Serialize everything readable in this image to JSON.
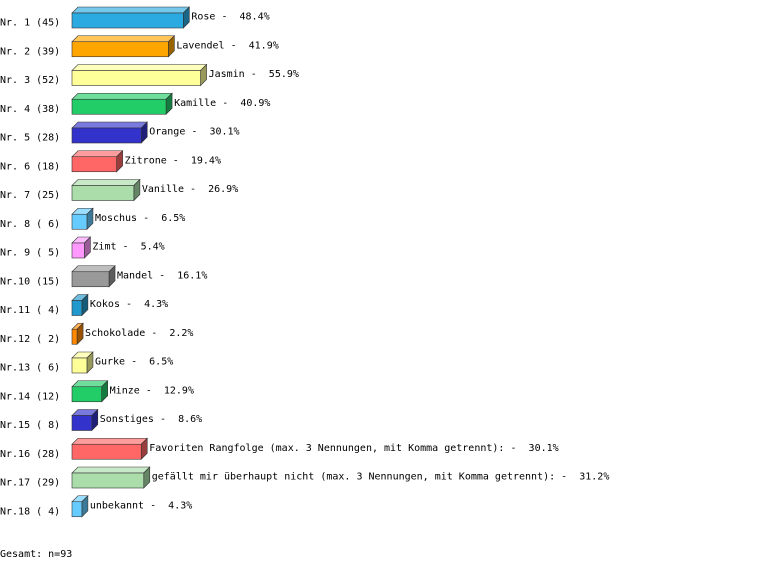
{
  "chart_data": {
    "type": "bar3d",
    "row_labels": [
      "Nr. 1 (45)",
      "Nr. 2 (39)",
      "Nr. 3 (52)",
      "Nr. 4 (38)",
      "Nr. 5 (28)",
      "Nr. 6 (18)",
      "Nr. 7 (25)",
      "Nr. 8 ( 6)",
      "Nr. 9 ( 5)",
      "Nr.10 (15)",
      "Nr.11 ( 4)",
      "Nr.12 ( 2)",
      "Nr.13 ( 6)",
      "Nr.14 (12)",
      "Nr.15 ( 8)",
      "Nr.16 (28)",
      "Nr.17 (29)",
      "Nr.18 ( 4)"
    ],
    "categories": [
      "Rose",
      "Lavendel",
      "Jasmin",
      "Kamille",
      "Orange",
      "Zitrone",
      "Vanille",
      "Moschus",
      "Zimt",
      "Mandel",
      "Kokos",
      "Schokolade",
      "Gurke",
      "Minze",
      "Sonstiges",
      "Favoriten Rangfolge (max. 3 Nennungen, mit Komma getrennt):",
      "gefällt mir überhaupt nicht (max. 3 Nennungen, mit Komma getrennt):",
      "unbekannt"
    ],
    "label_separator": "-",
    "values": [
      48.4,
      41.9,
      55.9,
      40.9,
      30.1,
      19.4,
      26.9,
      6.5,
      5.4,
      16.1,
      4.3,
      2.2,
      6.5,
      12.9,
      8.6,
      30.1,
      31.2,
      4.3
    ],
    "value_labels": [
      "48.4%",
      "41.9%",
      "55.9%",
      "40.9%",
      "30.1%",
      "19.4%",
      "26.9%",
      "6.5%",
      "5.4%",
      "16.1%",
      "4.3%",
      "2.2%",
      "6.5%",
      "12.9%",
      "8.6%",
      "30.1%",
      "31.2%",
      "4.3%"
    ],
    "colors": [
      "#2aaae0",
      "#ffa500",
      "#ffff99",
      "#22cc66",
      "#3333cc",
      "#ff6666",
      "#aaddaa",
      "#66ccff",
      "#ff99ff",
      "#999999",
      "#2299cc",
      "#ff8800",
      "#ffff99",
      "#22cc66",
      "#3333cc",
      "#ff6666",
      "#aaddaa",
      "#66ccff"
    ],
    "footer": "Gesamt: n=93"
  }
}
